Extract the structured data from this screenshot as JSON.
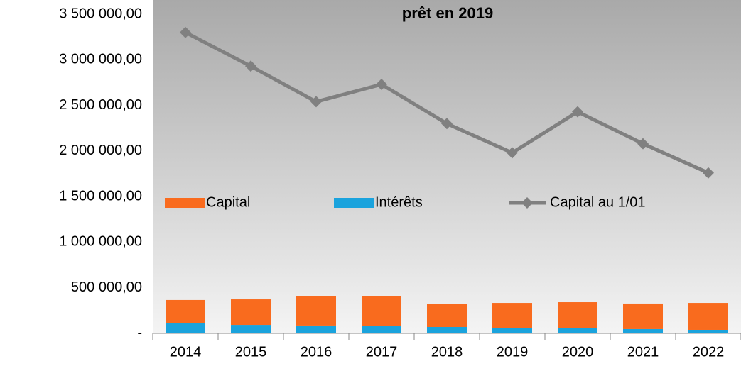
{
  "chart_data": {
    "type": "bar-line",
    "title": "prêt en 2019",
    "categories": [
      "2014",
      "2015",
      "2016",
      "2017",
      "2018",
      "2019",
      "2020",
      "2021",
      "2022"
    ],
    "series": [
      {
        "name": "Capital",
        "color": "#f96b1e",
        "type": "bar",
        "values": [
          257000,
          280000,
          326000,
          334000,
          249000,
          272000,
          284000,
          280000,
          295000
        ]
      },
      {
        "name": "Intérêts",
        "color": "#1aa3dd",
        "type": "bar",
        "values": [
          109000,
          93000,
          86000,
          78000,
          70000,
          62000,
          58000,
          47000,
          39000
        ]
      },
      {
        "name": "Capital au 1/01",
        "color": "#808080",
        "type": "line",
        "values": [
          3300000,
          2930000,
          2540000,
          2730000,
          2300000,
          1980000,
          2430000,
          2080000,
          1760000
        ]
      }
    ],
    "stack_order": [
      "Intérêts",
      "Capital"
    ],
    "ylim": [
      0,
      3500000
    ],
    "yticks": [
      {
        "value": 0,
        "label": "-"
      },
      {
        "value": 500000,
        "label": "500 000,00"
      },
      {
        "value": 1000000,
        "label": "1 000 000,00"
      },
      {
        "value": 1500000,
        "label": "1 500 000,00"
      },
      {
        "value": 2000000,
        "label": "2 000 000,00"
      },
      {
        "value": 2500000,
        "label": "2 500 000,00"
      },
      {
        "value": 3000000,
        "label": "3 000 000,00"
      },
      {
        "value": 3500000,
        "label": "3 500 000,00"
      }
    ],
    "grid": false
  }
}
